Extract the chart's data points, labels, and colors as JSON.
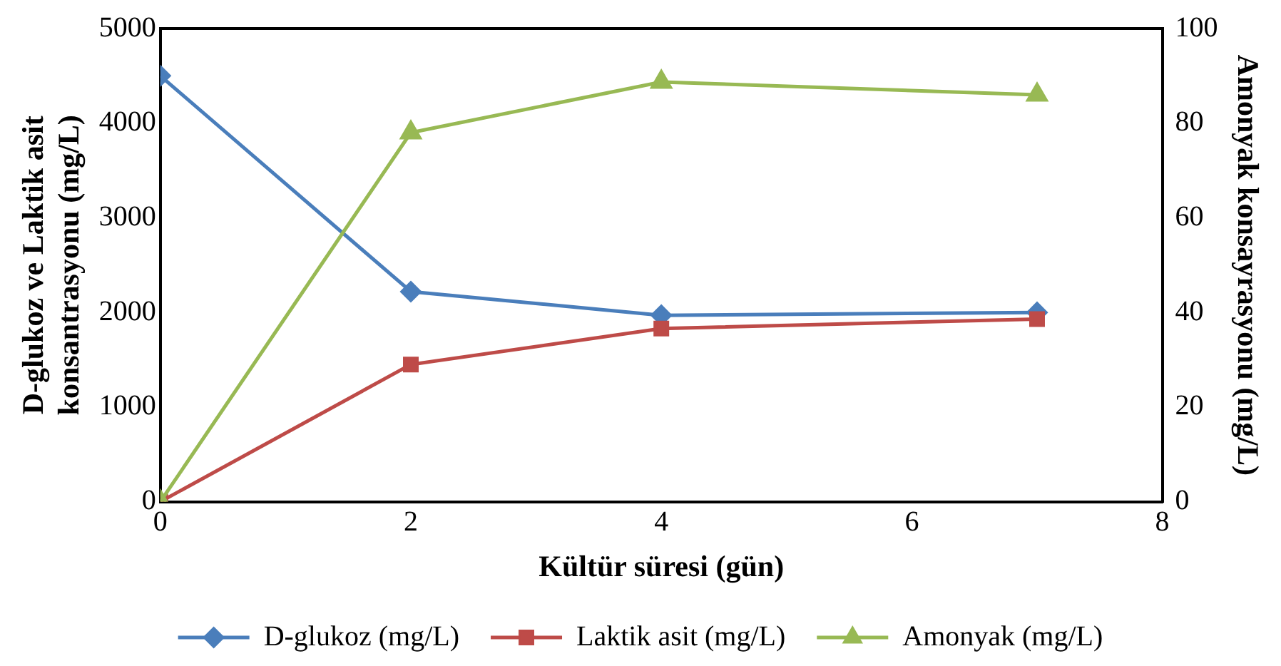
{
  "chart_data": {
    "type": "line",
    "xlabel": "Kültür süresi (gün)",
    "ylabel": "D-glukoz ve Laktik asit konsantrasyonu (mg/L)",
    "y2label": "Amonyak konsayrasyonu (mg/L)",
    "x": [
      0,
      2,
      4,
      7
    ],
    "xlim": [
      0,
      8
    ],
    "xticks": [
      0,
      2,
      4,
      6,
      8
    ],
    "ylim": [
      0,
      5000
    ],
    "yticks": [
      0,
      1000,
      2000,
      3000,
      4000,
      5000
    ],
    "y2lim": [
      0,
      100
    ],
    "y2ticks": [
      0,
      20,
      40,
      60,
      80,
      100
    ],
    "grid": false,
    "legend": "bottom",
    "line_style": "solid",
    "series": [
      {
        "name": "D-glukoz (mg/L)",
        "color": "#4a7ebb",
        "marker": "diamond",
        "values": [
          4500,
          2220,
          1970,
          2000
        ]
      },
      {
        "name": "Laktik asit (mg/L)",
        "color": "#be4b48",
        "marker": "square",
        "values": [
          0,
          1450,
          1830,
          1930
        ]
      },
      {
        "name": "Amonyak (mg/L)",
        "color": "#98b954",
        "marker": "triangle",
        "axis": "y2",
        "values": [
          0,
          78,
          88.7,
          86
        ]
      }
    ]
  }
}
